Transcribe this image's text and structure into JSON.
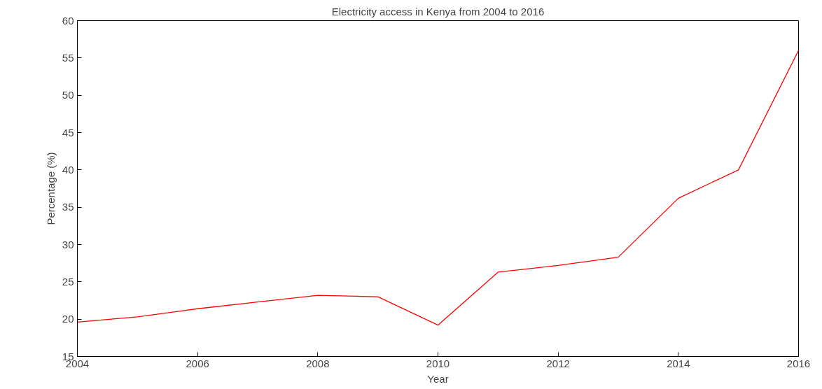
{
  "chart_data": {
    "type": "line",
    "title": "Electricity access in Kenya from 2004 to 2016",
    "xlabel": "Year",
    "ylabel": "Percentage (%)",
    "x": [
      2004,
      2005,
      2006,
      2007,
      2008,
      2009,
      2010,
      2011,
      2012,
      2013,
      2014,
      2015,
      2016
    ],
    "series": [
      {
        "color": "#ff0000",
        "values": [
          19.6,
          20.3,
          21.4,
          22.3,
          23.2,
          23.0,
          19.2,
          26.3,
          27.2,
          28.3,
          36.2,
          40.0,
          56.0
        ]
      }
    ],
    "xlim": [
      2004,
      2016
    ],
    "xticks": [
      2004,
      2006,
      2008,
      2010,
      2012,
      2014,
      2016
    ],
    "ylim": [
      15,
      60
    ],
    "yticks": [
      15,
      20,
      25,
      30,
      35,
      40,
      45,
      50,
      55,
      60
    ],
    "grid": false,
    "line_style": "solid"
  }
}
